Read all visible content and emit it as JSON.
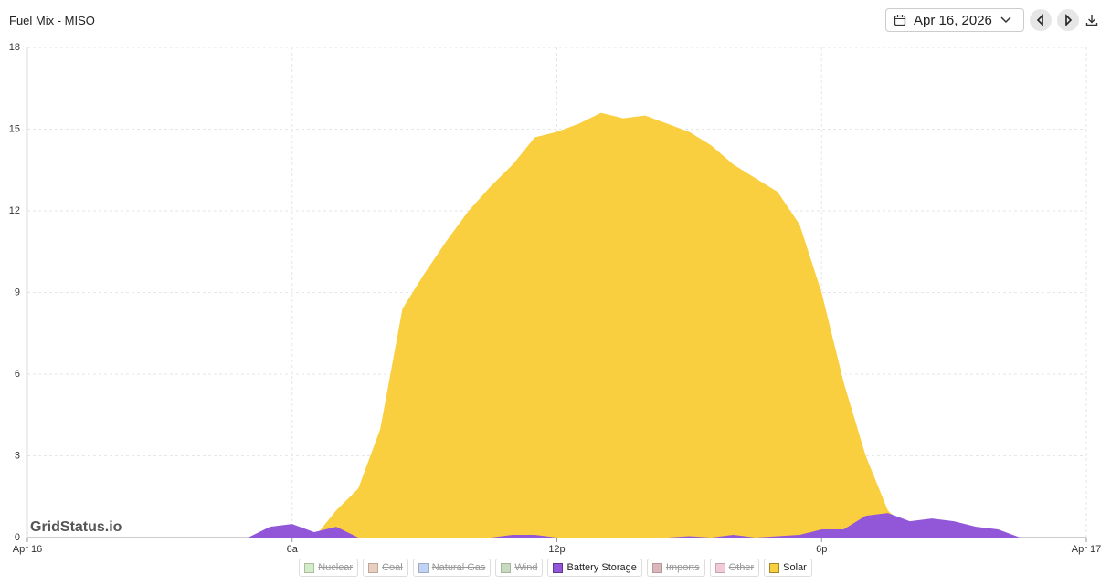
{
  "header": {
    "date": "Apr 16, 2026"
  },
  "watermark": "GridStatus.io",
  "chart_data": {
    "type": "area",
    "title": "Fuel Mix - MISO",
    "x": [
      0,
      0.5,
      1,
      1.5,
      2,
      2.5,
      3,
      3.5,
      4,
      4.5,
      5,
      5.5,
      6,
      6.5,
      7,
      7.5,
      8,
      8.5,
      9,
      9.5,
      10,
      10.5,
      11,
      11.5,
      12,
      12.5,
      13,
      13.5,
      14,
      14.5,
      15,
      15.5,
      16,
      16.5,
      17,
      17.5,
      18,
      18.5,
      19,
      19.5,
      20,
      20.5,
      21,
      21.5,
      22,
      22.5,
      23,
      23.5,
      24
    ],
    "xlim": [
      0,
      24
    ],
    "xticks": [
      {
        "value": 0,
        "label": "Apr 16"
      },
      {
        "value": 6,
        "label": "6a"
      },
      {
        "value": 12,
        "label": "12p"
      },
      {
        "value": 18,
        "label": "6p"
      },
      {
        "value": 24,
        "label": "Apr 17"
      }
    ],
    "ylim": [
      0,
      18
    ],
    "yticks": [
      0,
      3,
      6,
      9,
      12,
      15,
      18
    ],
    "grid": true,
    "series": [
      {
        "name": "Nuclear",
        "color": "#b8e0a2",
        "visible": false
      },
      {
        "name": "Coal",
        "color": "#dcae92",
        "visible": false
      },
      {
        "name": "Natural Gas",
        "color": "#98b6ef",
        "visible": false
      },
      {
        "name": "Wind",
        "color": "#a3c694",
        "visible": false
      },
      {
        "name": "Battery Storage",
        "color": "#9157d8",
        "visible": true,
        "values": [
          0,
          0,
          0,
          0,
          0,
          0,
          0,
          0,
          0,
          0,
          0,
          0.4,
          0.5,
          0.2,
          0.4,
          0,
          0,
          0,
          0,
          0,
          0,
          0,
          0.1,
          0.1,
          0,
          0,
          0,
          0,
          0,
          0,
          0.05,
          0,
          0.1,
          0,
          0.05,
          0.1,
          0.3,
          0.3,
          0.8,
          0.9,
          0.6,
          0.7,
          0.6,
          0.4,
          0.3,
          0,
          0,
          0,
          0
        ]
      },
      {
        "name": "Imports",
        "color": "#c58592",
        "visible": false
      },
      {
        "name": "Other",
        "color": "#eba8be",
        "visible": false
      },
      {
        "name": "Solar",
        "color": "#f9cf3f",
        "visible": true,
        "values": [
          0,
          0,
          0,
          0,
          0,
          0,
          0,
          0,
          0,
          0,
          0,
          0,
          0,
          0,
          1.0,
          1.8,
          4.0,
          8.4,
          9.7,
          10.9,
          12.0,
          12.9,
          13.7,
          14.7,
          14.9,
          15.2,
          15.6,
          15.4,
          15.5,
          15.2,
          14.9,
          14.4,
          13.7,
          13.2,
          12.7,
          11.5,
          9.0,
          5.7,
          3.0,
          1.0,
          0.2,
          0,
          0,
          0,
          0,
          0,
          0,
          0,
          0
        ]
      }
    ]
  }
}
